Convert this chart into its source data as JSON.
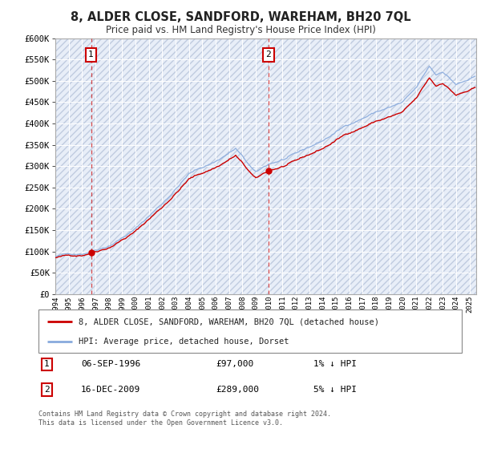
{
  "title": "8, ALDER CLOSE, SANDFORD, WAREHAM, BH20 7QL",
  "subtitle": "Price paid vs. HM Land Registry's House Price Index (HPI)",
  "legend_label_red": "8, ALDER CLOSE, SANDFORD, WAREHAM, BH20 7QL (detached house)",
  "legend_label_blue": "HPI: Average price, detached house, Dorset",
  "annotation1_date": "06-SEP-1996",
  "annotation1_price": "£97,000",
  "annotation1_hpi": "1% ↓ HPI",
  "annotation2_date": "16-DEC-2009",
  "annotation2_price": "£289,000",
  "annotation2_hpi": "5% ↓ HPI",
  "footer": "Contains HM Land Registry data © Crown copyright and database right 2024.\nThis data is licensed under the Open Government Licence v3.0.",
  "ylim": [
    0,
    600000
  ],
  "ytick_vals": [
    0,
    50000,
    100000,
    150000,
    200000,
    250000,
    300000,
    350000,
    400000,
    450000,
    500000,
    550000,
    600000
  ],
  "ytick_labels": [
    "£0",
    "£50K",
    "£100K",
    "£150K",
    "£200K",
    "£250K",
    "£300K",
    "£350K",
    "£400K",
    "£450K",
    "£500K",
    "£550K",
    "£600K"
  ],
  "bg_color": "#ffffff",
  "plot_bg_color": "#e8eef8",
  "grid_color": "#cccccc",
  "red_line_color": "#cc0000",
  "blue_line_color": "#88aadd",
  "sale1_x": 1996.67,
  "sale1_y": 97000,
  "sale2_x": 2009.96,
  "sale2_y": 289000,
  "vline1_x": 1996.67,
  "vline2_x": 2009.96,
  "xmin": 1994.0,
  "xmax": 2025.5
}
